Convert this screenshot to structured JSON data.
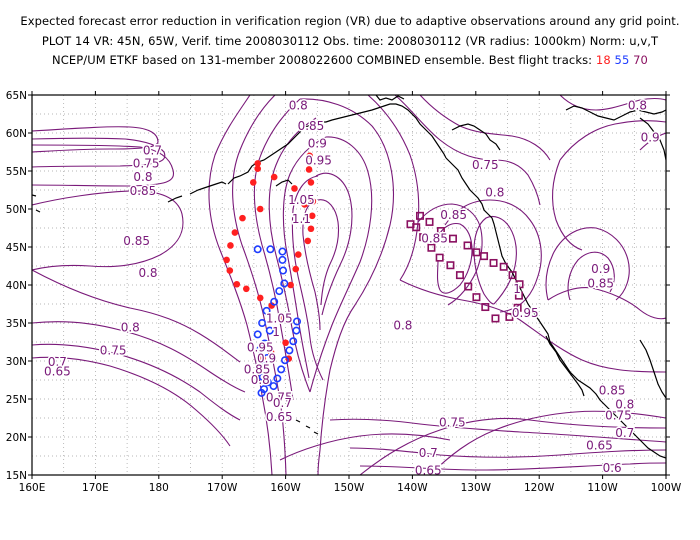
{
  "header": {
    "line1": "Expected forecast error reduction in verification region (VR) due to adaptive observations around any grid point.",
    "line2": "PLOT 14 VR: 45N, 65W, Verif. time 2008030112 Obs. time: 2008030112 (VR radius: 1000km) Norm: u,v,T",
    "line3_prefix": "NCEP/UM ETKF based on 131-member 2008022600 COMBINED ensemble.  Best flight tracks: ",
    "track_labels": [
      "18",
      "55",
      "70"
    ]
  },
  "colors": {
    "contour": "#7a1a7a",
    "grid": "#a0a0a0",
    "coast": "#000000",
    "track18": "#ff2020",
    "track55": "#1e3cff",
    "track70": "#8a1060"
  },
  "map": {
    "lon_range": [
      160,
      260
    ],
    "lat_range": [
      15,
      65
    ],
    "y_tick_labels": [
      "65N",
      "60N",
      "55N",
      "50N",
      "45N",
      "40N",
      "35N",
      "30N",
      "25N",
      "20N",
      "15N"
    ],
    "x_tick_labels": [
      "160E",
      "170E",
      "180",
      "170W",
      "160W",
      "150W",
      "140W",
      "130W",
      "120W",
      "110W",
      "100W"
    ]
  },
  "contour_labels": [
    {
      "text": "0.8",
      "lon": 202,
      "lat": 63.6
    },
    {
      "text": "0.85",
      "lon": 204,
      "lat": 60.9
    },
    {
      "text": "0.9",
      "lon": 205,
      "lat": 58.6
    },
    {
      "text": "0.95",
      "lon": 205.2,
      "lat": 56.4
    },
    {
      "text": "1.05",
      "lon": 202.5,
      "lat": 51.2
    },
    {
      "text": "1.1",
      "lon": 202.5,
      "lat": 48.7
    },
    {
      "text": "0.7",
      "lon": 179,
      "lat": 57.7
    },
    {
      "text": "0.75",
      "lon": 178,
      "lat": 56
    },
    {
      "text": "0.8",
      "lon": 177.5,
      "lat": 54.2
    },
    {
      "text": "0.85",
      "lon": 177.5,
      "lat": 52.4
    },
    {
      "text": "0.85",
      "lon": 176.5,
      "lat": 45.8
    },
    {
      "text": "0.8",
      "lon": 178.3,
      "lat": 41.6
    },
    {
      "text": "0.8",
      "lon": 175.5,
      "lat": 34.4
    },
    {
      "text": "0.75",
      "lon": 172.8,
      "lat": 31.4
    },
    {
      "text": "0.7",
      "lon": 164,
      "lat": 29.9
    },
    {
      "text": "0.65",
      "lon": 164,
      "lat": 28.6
    },
    {
      "text": "1.05",
      "lon": 199,
      "lat": 35.6
    },
    {
      "text": "1",
      "lon": 198.5,
      "lat": 33.8
    },
    {
      "text": "0.95",
      "lon": 196,
      "lat": 31.8
    },
    {
      "text": "0.9",
      "lon": 197,
      "lat": 30.3
    },
    {
      "text": "0.85",
      "lon": 195.5,
      "lat": 28.9
    },
    {
      "text": "0.8",
      "lon": 196,
      "lat": 27.5
    },
    {
      "text": "0.75",
      "lon": 199,
      "lat": 25.2
    },
    {
      "text": "0.7",
      "lon": 199.5,
      "lat": 24.5
    },
    {
      "text": "0.65",
      "lon": 199,
      "lat": 22.6
    },
    {
      "text": "0.8",
      "lon": 218.5,
      "lat": 34.7
    },
    {
      "text": "0.75",
      "lon": 231.5,
      "lat": 55.8
    },
    {
      "text": "0.8",
      "lon": 233,
      "lat": 52.2
    },
    {
      "text": "0.85",
      "lon": 223.5,
      "lat": 46.1
    },
    {
      "text": "0.85",
      "lon": 226.5,
      "lat": 49.2
    },
    {
      "text": "1",
      "lon": 236.5,
      "lat": 39.5
    },
    {
      "text": "0.95",
      "lon": 237.8,
      "lat": 36.3
    },
    {
      "text": "0.75",
      "lon": 226.3,
      "lat": 21.9
    },
    {
      "text": "0.7",
      "lon": 222.5,
      "lat": 17.9
    },
    {
      "text": "0.65",
      "lon": 222.5,
      "lat": 15.6
    },
    {
      "text": "0.9",
      "lon": 249.7,
      "lat": 42.1
    },
    {
      "text": "0.85",
      "lon": 249.7,
      "lat": 40.2
    },
    {
      "text": "0.8",
      "lon": 255.5,
      "lat": 63.6
    },
    {
      "text": "0.9",
      "lon": 257.5,
      "lat": 59.4
    },
    {
      "text": "0.85",
      "lon": 251.5,
      "lat": 26.1
    },
    {
      "text": "0.8",
      "lon": 253.5,
      "lat": 24.3
    },
    {
      "text": "0.75",
      "lon": 252.5,
      "lat": 22.8
    },
    {
      "text": "0.7",
      "lon": 253.5,
      "lat": 20.5
    },
    {
      "text": "0.65",
      "lon": 249.5,
      "lat": 18.9
    },
    {
      "text": "0.6",
      "lon": 251.5,
      "lat": 15.9
    }
  ],
  "tracks": {
    "t18": [
      [
        195.6,
        55.3
      ],
      [
        198.2,
        54.2
      ],
      [
        201.4,
        52.7
      ],
      [
        203,
        50.6
      ],
      [
        196,
        50
      ],
      [
        193.2,
        48.8
      ],
      [
        192,
        46.9
      ],
      [
        191.3,
        45.2
      ],
      [
        190.7,
        43.3
      ],
      [
        191.2,
        41.9
      ],
      [
        192.3,
        40.1
      ],
      [
        193.8,
        39.5
      ],
      [
        196,
        38.3
      ],
      [
        197.8,
        37.3
      ],
      [
        199.3,
        35.8
      ],
      [
        200,
        32.4
      ],
      [
        197.7,
        31.2
      ],
      [
        196.4,
        30.3
      ],
      [
        200.5,
        30.3
      ],
      [
        194.9,
        53.5
      ],
      [
        195.6,
        56
      ],
      [
        203.8,
        57
      ],
      [
        203.7,
        55.2
      ],
      [
        204,
        53.5
      ],
      [
        204.3,
        51
      ],
      [
        204.2,
        49.1
      ],
      [
        204,
        47.4
      ],
      [
        203.5,
        45.8
      ],
      [
        202,
        44
      ],
      [
        201.6,
        42.1
      ],
      [
        200.8,
        40
      ]
    ],
    "t55": [
      [
        195.6,
        44.7
      ],
      [
        197.6,
        44.7
      ],
      [
        199.5,
        44.4
      ],
      [
        199.5,
        43.3
      ],
      [
        199.6,
        41.9
      ],
      [
        199.8,
        40.2
      ],
      [
        199,
        39.2
      ],
      [
        198.2,
        37.8
      ],
      [
        197,
        36.6
      ],
      [
        196.3,
        35
      ],
      [
        197.5,
        34
      ],
      [
        195.6,
        33.5
      ],
      [
        196.7,
        32.3
      ],
      [
        196,
        31.5
      ],
      [
        197.1,
        30.4
      ],
      [
        196.5,
        29.3
      ],
      [
        196.4,
        27.9
      ],
      [
        197.2,
        27.2
      ],
      [
        196.6,
        26.3
      ],
      [
        196.2,
        25.8
      ],
      [
        201.8,
        35.2
      ],
      [
        201.7,
        34
      ],
      [
        201.2,
        32.6
      ],
      [
        200.6,
        31.4
      ],
      [
        199.9,
        30.1
      ],
      [
        199.3,
        28.9
      ],
      [
        198.7,
        27.7
      ],
      [
        198.1,
        26.7
      ]
    ],
    "t70": [
      [
        219.7,
        48
      ],
      [
        221.2,
        49.1
      ],
      [
        222.7,
        48.3
      ],
      [
        224.5,
        47.1
      ],
      [
        226.4,
        46.1
      ],
      [
        228.7,
        45.2
      ],
      [
        230.1,
        44.3
      ],
      [
        231.3,
        43.8
      ],
      [
        232.8,
        42.9
      ],
      [
        234.4,
        42.4
      ],
      [
        235.8,
        41.3
      ],
      [
        236.9,
        40.1
      ],
      [
        236.8,
        38.6
      ],
      [
        236.6,
        37
      ],
      [
        235.3,
        35.8
      ],
      [
        233.1,
        35.6
      ],
      [
        231.5,
        37.1
      ],
      [
        230.1,
        38.4
      ],
      [
        228.8,
        39.8
      ],
      [
        227.5,
        41.3
      ],
      [
        226,
        42.6
      ],
      [
        224.3,
        43.6
      ],
      [
        223,
        44.9
      ],
      [
        221.7,
        46.3
      ],
      [
        220.6,
        47.6
      ]
    ]
  }
}
